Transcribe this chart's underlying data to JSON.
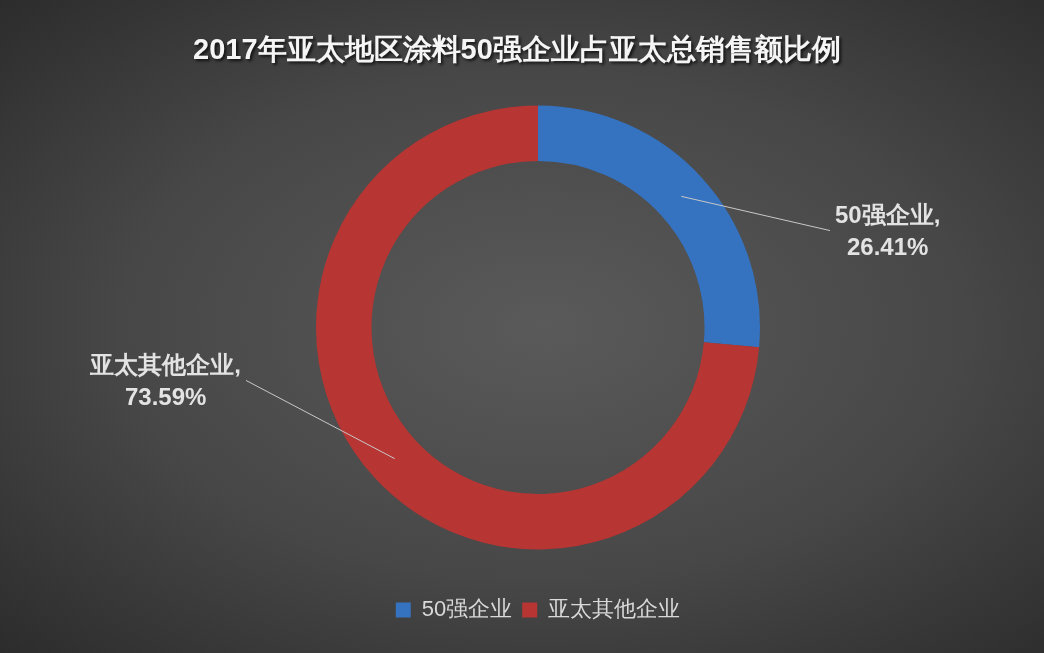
{
  "chart_data": {
    "type": "donut",
    "title": "2017年亚太地区涂料50强企业占亚太总销售额比例",
    "categories": [
      "50强企业",
      "亚太其他企业"
    ],
    "values": [
      26.41,
      73.59
    ],
    "colors": [
      "#3572bf",
      "#b73532"
    ],
    "value_labels": [
      "50强企业,\n26.41%",
      "亚太其他企业,\n73.59%"
    ],
    "legend": "bottom"
  }
}
